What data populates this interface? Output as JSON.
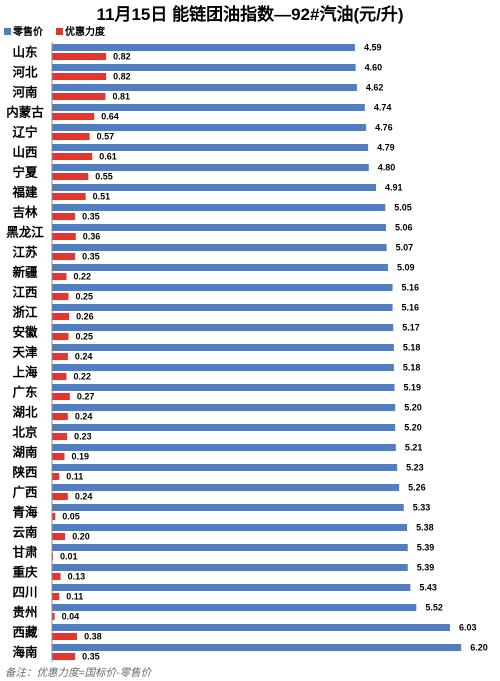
{
  "chart_data": {
    "type": "bar",
    "orientation": "horizontal",
    "title": "11月15日 能链团油指数—92#汽油(元/升)",
    "legend": "top-left",
    "grid": false,
    "categories": [
      "山东",
      "河北",
      "河南",
      "内蒙古",
      "辽宁",
      "山西",
      "宁夏",
      "福建",
      "吉林",
      "黑龙江",
      "江苏",
      "新疆",
      "江西",
      "浙江",
      "安徽",
      "天津",
      "上海",
      "广东",
      "湖北",
      "北京",
      "湖南",
      "陕西",
      "广西",
      "青海",
      "云南",
      "甘肃",
      "重庆",
      "四川",
      "贵州",
      "西藏",
      "海南"
    ],
    "series": [
      {
        "name": "零售价",
        "color": "#4f7fc2",
        "values": [
          4.59,
          4.6,
          4.62,
          4.74,
          4.76,
          4.79,
          4.8,
          4.91,
          5.05,
          5.06,
          5.07,
          5.09,
          5.16,
          5.16,
          5.17,
          5.18,
          5.18,
          5.19,
          5.2,
          5.2,
          5.21,
          5.23,
          5.26,
          5.33,
          5.38,
          5.39,
          5.39,
          5.43,
          5.52,
          6.03,
          6.2
        ]
      },
      {
        "name": "优惠力度",
        "color": "#e2372f",
        "values": [
          0.82,
          0.82,
          0.81,
          0.64,
          0.57,
          0.61,
          0.55,
          0.51,
          0.35,
          0.36,
          0.35,
          0.22,
          0.25,
          0.26,
          0.25,
          0.24,
          0.22,
          0.27,
          0.24,
          0.23,
          0.19,
          0.11,
          0.24,
          0.05,
          0.2,
          0.01,
          0.13,
          0.11,
          0.04,
          0.38,
          0.35
        ]
      }
    ],
    "note": "备注：优惠力度=国标价-零售价"
  }
}
